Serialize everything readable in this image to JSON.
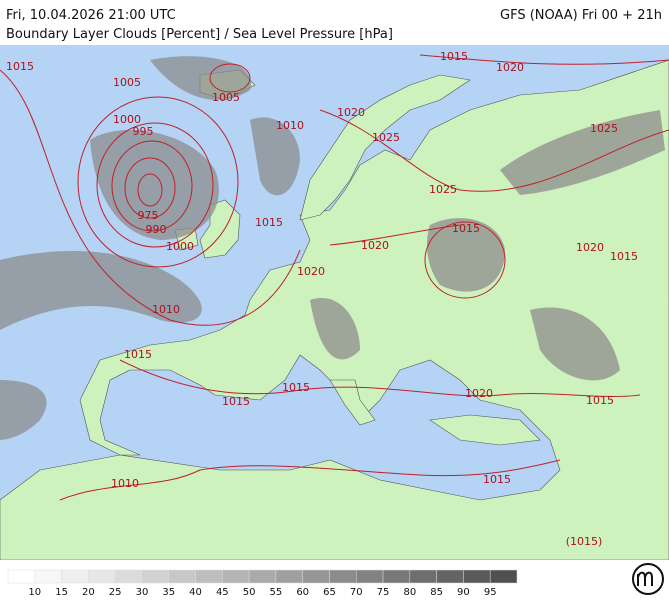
{
  "header": {
    "title": "Fri, 10.04.2026 21:00 UTC",
    "model": "GFS (NOAA) Fri 00 + 21h",
    "subtitle": "Boundary Layer Clouds [Percent] / Sea Level Pressure [hPa]"
  },
  "isobar_labels": [
    "1015",
    "1005",
    "1005",
    "1000",
    "995",
    "975",
    "990",
    "1000",
    "1010",
    "1015",
    "1010",
    "1015",
    "1015",
    "1020",
    "1020",
    "1025",
    "1025",
    "1025",
    "1015",
    "1020",
    "1020",
    "1015",
    "1020",
    "1015",
    "1015",
    "1020",
    "1015",
    "1015",
    "1010",
    "(1015)"
  ],
  "legend": {
    "labels": [
      "10",
      "15",
      "20",
      "25",
      "30",
      "35",
      "40",
      "45",
      "50",
      "55",
      "60",
      "65",
      "70",
      "75",
      "80",
      "85",
      "90",
      "95"
    ],
    "colors": [
      "#ffffff",
      "#f7f7f7",
      "#efefef",
      "#e6e6e6",
      "#dcdcdc",
      "#d2d2d2",
      "#c8c8c8",
      "#bebebe",
      "#b4b4b4",
      "#aaaaaa",
      "#a0a0a0",
      "#969696",
      "#8c8c8c",
      "#828282",
      "#787878",
      "#6e6e6e",
      "#646464",
      "#5a5a5a",
      "#505050"
    ]
  }
}
